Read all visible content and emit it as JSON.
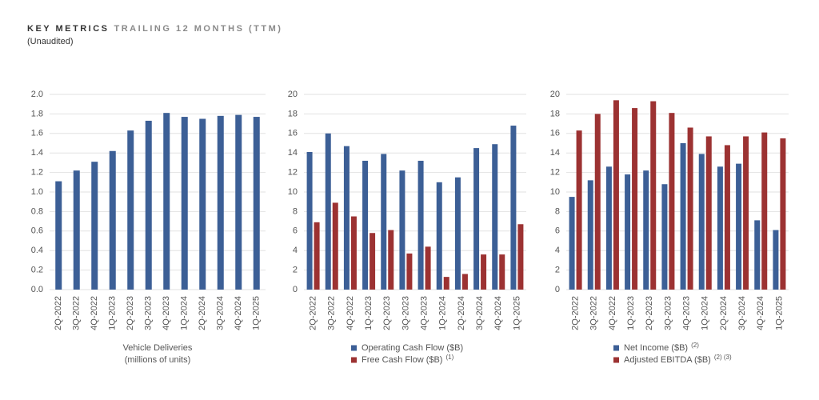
{
  "header": {
    "title": "KEY METRICS",
    "subtitle": "TRAILING 12 MONTHS (TTM)",
    "note": "(Unaudited)"
  },
  "chart_data": [
    {
      "type": "bar",
      "categories": [
        "2Q-2022",
        "3Q-2022",
        "4Q-2022",
        "1Q-2023",
        "2Q-2023",
        "3Q-2023",
        "4Q-2023",
        "1Q-2024",
        "2Q-2024",
        "3Q-2024",
        "4Q-2024",
        "1Q-2025"
      ],
      "series": [
        {
          "name": "Vehicle Deliveries",
          "color": "#3c5f96",
          "values": [
            1.11,
            1.22,
            1.31,
            1.42,
            1.63,
            1.73,
            1.81,
            1.77,
            1.75,
            1.78,
            1.79,
            1.77
          ]
        }
      ],
      "xlabel": [
        "Vehicle Deliveries",
        "(millions of units)"
      ],
      "ylim": [
        0,
        2
      ],
      "yticks": [
        {
          "value": 0,
          "label": "0.0"
        },
        0.2,
        0.4,
        0.6,
        0.8,
        {
          "value": 1,
          "label": "1.0"
        },
        1.2,
        1.4,
        1.6,
        1.8,
        {
          "value": 2,
          "label": "2.0"
        }
      ],
      "grid": true
    },
    {
      "type": "bar",
      "categories": [
        "2Q-2022",
        "3Q-2022",
        "4Q-2022",
        "1Q-2023",
        "2Q-2023",
        "3Q-2023",
        "4Q-2023",
        "1Q-2024",
        "2Q-2024",
        "3Q-2024",
        "4Q-2024",
        "1Q-2025"
      ],
      "series": [
        {
          "name": "Operating Cash Flow ($B)",
          "color": "#3c5f96",
          "values": [
            14.1,
            16.0,
            14.7,
            13.2,
            13.9,
            12.2,
            13.2,
            11.0,
            11.5,
            14.5,
            14.9,
            16.8
          ]
        },
        {
          "name": "Free Cash Flow ($B)",
          "footnote": "(1)",
          "color": "#9c3232",
          "values": [
            6.9,
            8.9,
            7.5,
            5.8,
            6.1,
            3.7,
            4.4,
            1.3,
            1.6,
            3.6,
            3.6,
            6.7
          ]
        }
      ],
      "ylim": [
        0,
        20
      ],
      "yticks": [
        0,
        2,
        4,
        6,
        8,
        10,
        12,
        14,
        16,
        18,
        20
      ],
      "grid": true,
      "legend": "bottom"
    },
    {
      "type": "bar",
      "categories": [
        "2Q-2022",
        "3Q-2022",
        "4Q-2022",
        "1Q-2023",
        "2Q-2023",
        "3Q-2023",
        "4Q-2023",
        "1Q-2024",
        "2Q-2024",
        "3Q-2024",
        "4Q-2024",
        "1Q-2025"
      ],
      "series": [
        {
          "name": "Net Income ($B)",
          "footnote": "(2)",
          "color": "#3c5f96",
          "values": [
            9.5,
            11.2,
            12.6,
            11.8,
            12.2,
            10.8,
            15.0,
            13.9,
            12.6,
            12.9,
            7.1,
            6.1
          ]
        },
        {
          "name": "Adjusted EBITDA ($B)",
          "footnote": "(2) (3)",
          "color": "#9c3232",
          "values": [
            16.3,
            18.0,
            19.4,
            18.6,
            19.3,
            18.1,
            16.6,
            15.7,
            14.8,
            15.7,
            16.1,
            15.5
          ]
        }
      ],
      "ylim": [
        0,
        20
      ],
      "yticks": [
        0,
        2,
        4,
        6,
        8,
        10,
        12,
        14,
        16,
        18,
        20
      ],
      "grid": true,
      "legend": "bottom"
    }
  ]
}
